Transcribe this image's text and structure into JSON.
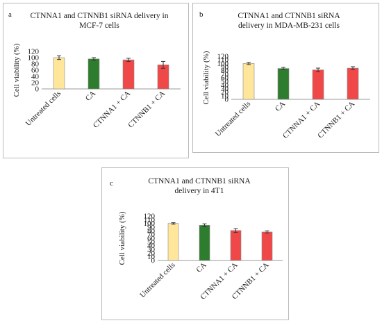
{
  "colors": {
    "untreated": "#ffe69a",
    "ca": "#2e7d2e",
    "ctnna1": "#f04848",
    "ctnnb1": "#f04848",
    "bar_stroke": "#8a8a8a",
    "axis": "#9a9a9a"
  },
  "panels": [
    {
      "letter": "a",
      "title_line1": "CTNNA1 and CTNNB1 siRNA delivery in",
      "title_line2": "MCF-7 cells"
    },
    {
      "letter": "b",
      "title_line1": "CTNNA1 and CTNNB1 siRNA",
      "title_line2": "delivery in MDA-MB-231 cells"
    },
    {
      "letter": "c",
      "title_line1": "CTNNA1 and CTNNB1 siRNA",
      "title_line2": "delivery in 4T1"
    }
  ],
  "chart_data": [
    {
      "type": "bar",
      "title": "CTNNA1 and CTNNB1 siRNA delivery in MCF-7 cells",
      "ylabel": "Cell viability (%)",
      "categories": [
        "Untreated cells",
        "CA",
        "CTNNA1 + CA",
        "CTNNB1 + CA"
      ],
      "values": [
        100,
        96,
        93,
        77
      ],
      "errors": [
        6,
        4,
        5,
        11
      ],
      "yticks": [
        0,
        20,
        40,
        60,
        80,
        100,
        120
      ],
      "ylim": [
        0,
        120
      ],
      "grid": false
    },
    {
      "type": "bar",
      "title": "CTNNA1 and CTNNB1 siRNA delivery in MDA-MB-231 cells",
      "ylabel": "Cell viability (%)",
      "categories": [
        "Untreated cells",
        "CA",
        "CTNNA1 + CA",
        "CTNNB1 + CA"
      ],
      "values": [
        100,
        86,
        82,
        87
      ],
      "errors": [
        3,
        3,
        5,
        4
      ],
      "yticks": [
        0,
        10,
        20,
        30,
        40,
        50,
        60,
        70,
        80,
        90,
        100,
        110,
        120
      ],
      "ylim": [
        0,
        120
      ],
      "grid": false
    },
    {
      "type": "bar",
      "title": "CTNNA1 and CTNNB1 siRNA delivery in 4T1",
      "ylabel": "Cell viability (%)",
      "categories": [
        "Untreated cells",
        "CA",
        "CTNNA1 + CA",
        "CTNNB1 + CA"
      ],
      "values": [
        100,
        95,
        81,
        77
      ],
      "errors": [
        2,
        4,
        5,
        3
      ],
      "yticks": [
        0,
        10,
        20,
        30,
        40,
        50,
        60,
        70,
        80,
        90,
        100,
        110,
        120
      ],
      "ylim": [
        0,
        120
      ],
      "grid": false
    }
  ]
}
